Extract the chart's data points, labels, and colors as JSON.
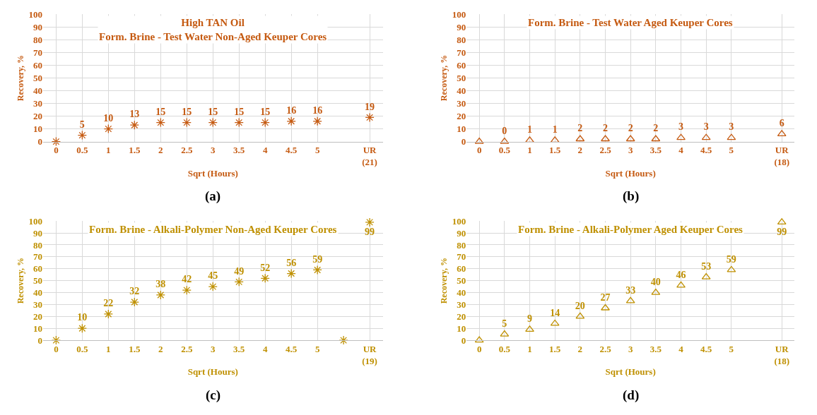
{
  "chart_data": [
    {
      "type": "scatter",
      "title": "High TAN Oil\nForm. Brine - Test Water Non-Aged Keuper Cores",
      "xlabel": "Sqrt (Hours)",
      "ylabel": "Recovery, %",
      "categories": [
        "0",
        "0.5",
        "1",
        "1.5",
        "2",
        "2.5",
        "3",
        "3.5",
        "4",
        "4.5",
        "5",
        null,
        "UR\n(21)"
      ],
      "series": [
        {
          "color": "#c55a11",
          "values": [
            0,
            5,
            10,
            13,
            15,
            15,
            15,
            15,
            15,
            16,
            16,
            null,
            19
          ],
          "value_labels": [
            null,
            "5",
            "10",
            "13",
            "15",
            "15",
            "15",
            "15",
            "15",
            "16",
            "16",
            null,
            "19"
          ]
        }
      ],
      "marker": "cross",
      "ylim": [
        0,
        100
      ],
      "yticks": [
        0,
        10,
        20,
        30,
        40,
        50,
        60,
        70,
        80,
        90,
        100
      ],
      "grid": true,
      "annotations": [
        "(a)"
      ]
    },
    {
      "type": "scatter",
      "title": "Form. Brine - Test Water Aged Keuper Cores",
      "xlabel": "Sqrt (Hours)",
      "ylabel": "Recovery, %",
      "categories": [
        "0",
        "0.5",
        "1",
        "1.5",
        "2",
        "2.5",
        "3",
        "3.5",
        "4",
        "4.5",
        "5",
        null,
        "UR\n(18)"
      ],
      "series": [
        {
          "color": "#c55a11",
          "values": [
            0,
            0,
            1,
            1,
            2,
            2,
            2,
            2,
            3,
            3,
            3,
            null,
            6
          ],
          "value_labels": [
            null,
            "0",
            "1",
            "1",
            "2",
            "2",
            "2",
            "2",
            "3",
            "3",
            "3",
            null,
            "6"
          ]
        }
      ],
      "marker": "triangle",
      "ylim": [
        0,
        100
      ],
      "yticks": [
        0,
        10,
        20,
        30,
        40,
        50,
        60,
        70,
        80,
        90,
        100
      ],
      "grid": true,
      "annotations": [
        "(b)"
      ]
    },
    {
      "type": "scatter",
      "title": "Form. Brine - Alkali-Polymer Non-Aged Keuper Cores",
      "xlabel": "Sqrt (Hours)",
      "ylabel": "Recovery, %",
      "categories": [
        "0",
        "0.5",
        "1",
        "1.5",
        "2",
        "2.5",
        "3",
        "3.5",
        "4",
        "4.5",
        "5",
        null,
        "UR\n(19)"
      ],
      "series": [
        {
          "color": "#bf9000",
          "values": [
            0,
            10,
            22,
            32,
            38,
            42,
            45,
            49,
            52,
            56,
            59,
            0,
            99
          ],
          "value_labels": [
            null,
            "10",
            "22",
            "32",
            "38",
            "42",
            "45",
            "49",
            "52",
            "56",
            "59",
            null,
            "99"
          ]
        }
      ],
      "marker": "cross",
      "ylim": [
        0,
        100
      ],
      "yticks": [
        0,
        10,
        20,
        30,
        40,
        50,
        60,
        70,
        80,
        90,
        100
      ],
      "grid": true,
      "annotations": [
        "(c)"
      ]
    },
    {
      "type": "scatter",
      "title": "Form. Brine - Alkali-Polymer Aged Keuper Cores",
      "xlabel": "Sqrt (Hours)",
      "ylabel": "Recovery, %",
      "categories": [
        "0",
        "0.5",
        "1",
        "1.5",
        "2",
        "2.5",
        "3",
        "3.5",
        "4",
        "4.5",
        "5",
        null,
        "UR\n(18)"
      ],
      "series": [
        {
          "color": "#bf9000",
          "values": [
            0,
            5,
            9,
            14,
            20,
            27,
            33,
            40,
            46,
            53,
            59,
            null,
            99
          ],
          "value_labels": [
            null,
            "5",
            "9",
            "14",
            "20",
            "27",
            "33",
            "40",
            "46",
            "53",
            "59",
            null,
            "99"
          ]
        }
      ],
      "marker": "triangle",
      "ylim": [
        0,
        100
      ],
      "yticks": [
        0,
        10,
        20,
        30,
        40,
        50,
        60,
        70,
        80,
        90,
        100
      ],
      "grid": true,
      "annotations": [
        "(d)"
      ]
    }
  ]
}
